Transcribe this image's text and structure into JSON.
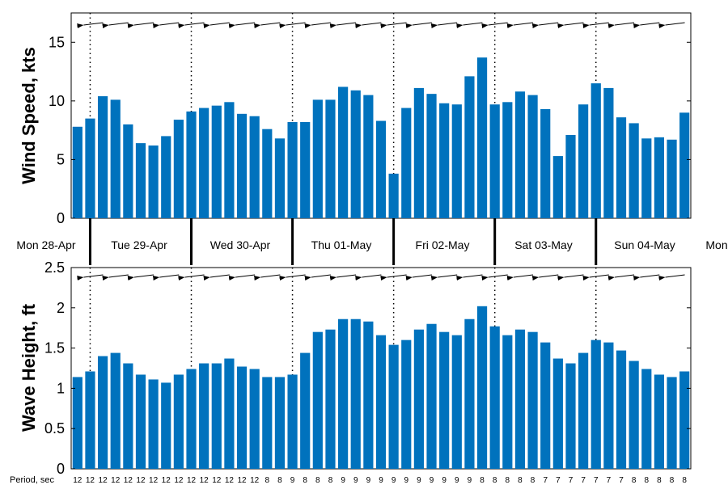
{
  "chart_data": [
    {
      "type": "bar",
      "ylabel": "Wind Speed, kts",
      "ylim": [
        0,
        17.5
      ],
      "yticks": [
        0,
        5,
        10,
        15
      ],
      "bar_color": "#0072bd",
      "values": [
        7.8,
        8.5,
        10.4,
        10.1,
        8.0,
        6.4,
        6.2,
        7.0,
        8.4,
        9.1,
        9.4,
        9.6,
        9.9,
        8.9,
        8.7,
        7.6,
        6.8,
        8.2,
        8.2,
        10.1,
        10.1,
        11.2,
        10.9,
        10.5,
        8.3,
        3.8,
        9.4,
        11.1,
        10.6,
        9.8,
        9.7,
        12.1,
        13.7,
        9.7,
        9.9,
        10.8,
        10.5,
        9.3,
        5.3,
        7.1,
        9.7,
        11.5,
        11.1,
        8.6,
        8.1,
        6.8,
        6.9,
        6.7,
        9.0
      ],
      "direction_arrows": true
    },
    {
      "type": "bar",
      "ylabel": "Wave Height, ft",
      "ylim": [
        0,
        2.5
      ],
      "yticks": [
        "0",
        "0.5",
        "1",
        "1.5",
        "2",
        "2.5"
      ],
      "bar_color": "#0072bd",
      "values": [
        1.14,
        1.21,
        1.4,
        1.44,
        1.31,
        1.17,
        1.11,
        1.07,
        1.17,
        1.24,
        1.31,
        1.31,
        1.37,
        1.27,
        1.24,
        1.14,
        1.14,
        1.17,
        1.44,
        1.7,
        1.73,
        1.86,
        1.86,
        1.83,
        1.66,
        1.54,
        1.6,
        1.73,
        1.8,
        1.7,
        1.66,
        1.86,
        2.02,
        1.77,
        1.66,
        1.73,
        1.7,
        1.57,
        1.37,
        1.31,
        1.44,
        1.6,
        1.57,
        1.47,
        1.34,
        1.24,
        1.17,
        1.14,
        1.21
      ],
      "direction_arrows": true
    }
  ],
  "days": [
    "Mon 28-Apr",
    "Tue 29-Apr",
    "Wed 30-Apr",
    "Thu 01-May",
    "Fri 02-May",
    "Sat 03-May",
    "Sun 04-May",
    "Mon"
  ],
  "period_label": "Period, sec",
  "periods": [
    "12",
    "12",
    "12",
    "12",
    "12",
    "12",
    "12",
    "12",
    "12",
    "12",
    "12",
    "12",
    "12",
    "12",
    "12",
    "8",
    "8",
    "9",
    "8",
    "8",
    "8",
    "9",
    "9",
    "9",
    "9",
    "9",
    "9",
    "9",
    "9",
    "9",
    "9",
    "9",
    "8",
    "8",
    "8",
    "8",
    "8",
    "7",
    "7",
    "7",
    "7",
    "7",
    "7",
    "7",
    "8",
    "8",
    "8",
    "8",
    "8"
  ]
}
